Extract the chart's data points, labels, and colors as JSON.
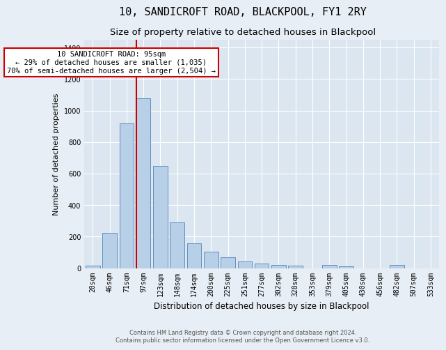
{
  "title": "10, SANDICROFT ROAD, BLACKPOOL, FY1 2RY",
  "subtitle": "Size of property relative to detached houses in Blackpool",
  "xlabel": "Distribution of detached houses by size in Blackpool",
  "ylabel": "Number of detached properties",
  "categories": [
    "20sqm",
    "46sqm",
    "71sqm",
    "97sqm",
    "123sqm",
    "148sqm",
    "174sqm",
    "200sqm",
    "225sqm",
    "251sqm",
    "277sqm",
    "302sqm",
    "328sqm",
    "353sqm",
    "379sqm",
    "405sqm",
    "430sqm",
    "456sqm",
    "482sqm",
    "507sqm",
    "533sqm"
  ],
  "values": [
    15,
    225,
    920,
    1080,
    650,
    290,
    158,
    105,
    68,
    42,
    28,
    18,
    15,
    0,
    18,
    10,
    0,
    0,
    20,
    0,
    0
  ],
  "bar_color": "#b8cfe8",
  "bar_edge_color": "#6090c0",
  "vline_color": "#cc0000",
  "vline_xindex": 2.57,
  "annotation_text": "10 SANDICROFT ROAD: 95sqm\n← 29% of detached houses are smaller (1,035)\n70% of semi-detached houses are larger (2,504) →",
  "annotation_box_color": "#ffffff",
  "annotation_box_edge": "#cc0000",
  "bg_color": "#e8eef5",
  "plot_bg_color": "#dce6f0",
  "footer": "Contains HM Land Registry data © Crown copyright and database right 2024.\nContains public sector information licensed under the Open Government Licence v3.0.",
  "ylim": [
    0,
    1450
  ],
  "yticks": [
    0,
    200,
    400,
    600,
    800,
    1000,
    1200,
    1400
  ],
  "title_fontsize": 11,
  "subtitle_fontsize": 9.5,
  "axis_label_fontsize": 8.5,
  "ylabel_fontsize": 8,
  "tick_fontsize": 7,
  "footer_fontsize": 6,
  "annotation_fontsize": 7.5
}
